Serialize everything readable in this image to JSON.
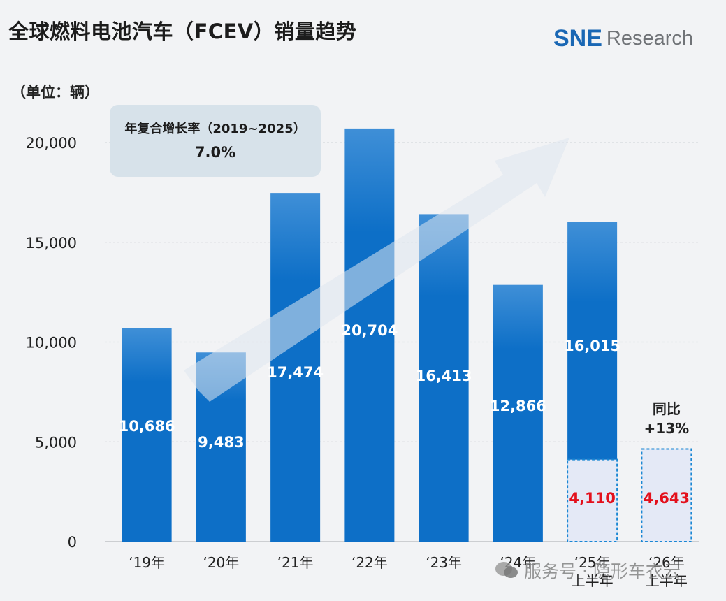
{
  "title": "全球燃料电池汽车（FCEV）销量趋势",
  "logo": {
    "sne": "SNE",
    "research": "Research"
  },
  "unit_label": "（单位：辆）",
  "cagr": {
    "label": "年复合增长率（2019~2025）",
    "value": "7.0%"
  },
  "yoy": {
    "line1": "同比",
    "line2": "+13%"
  },
  "watermark": "服务号 · 隐形车衣云",
  "colors": {
    "bar": "#0d6fc7",
    "bar_light": "#3f8fd7",
    "h1_fill": "#e4e9f6",
    "h1_border": "#1a87d4",
    "h1_text": "#e3101c",
    "arrow": "#dfe6ee"
  },
  "chart_data": {
    "type": "bar",
    "title": "全球燃料电池汽车（FCEV）销量趋势",
    "ylabel": "（单位：辆）",
    "ylim": [
      0,
      20000
    ],
    "yticks": [
      "0",
      "5,000",
      "10,000",
      "15,000",
      "20,000"
    ],
    "ytick_values": [
      0,
      5000,
      10000,
      15000,
      20000
    ],
    "grid": true,
    "categories": [
      [
        "‘19年"
      ],
      [
        "‘20年"
      ],
      [
        "‘21年"
      ],
      [
        "‘22年"
      ],
      [
        "‘23年"
      ],
      [
        "‘24年"
      ],
      [
        "‘25年",
        "上半年"
      ],
      [
        "‘26年",
        "上半年"
      ]
    ],
    "series": [
      {
        "values": [
          10686,
          9483,
          17474,
          20704,
          16413,
          12866,
          16015,
          null
        ],
        "labels": [
          "10,686",
          "9,483",
          "17,474",
          "20,704",
          "16,413",
          "12,866",
          "16,015",
          ""
        ]
      },
      {
        "values": [
          null,
          null,
          null,
          null,
          null,
          null,
          4110,
          4643
        ],
        "labels": [
          "",
          "",
          "",
          "",
          "",
          "",
          "4,110",
          "4,643"
        ]
      }
    ],
    "annotations": [
      "年复合增长率（2019~2025） 7.0%",
      "同比 +13%"
    ]
  }
}
